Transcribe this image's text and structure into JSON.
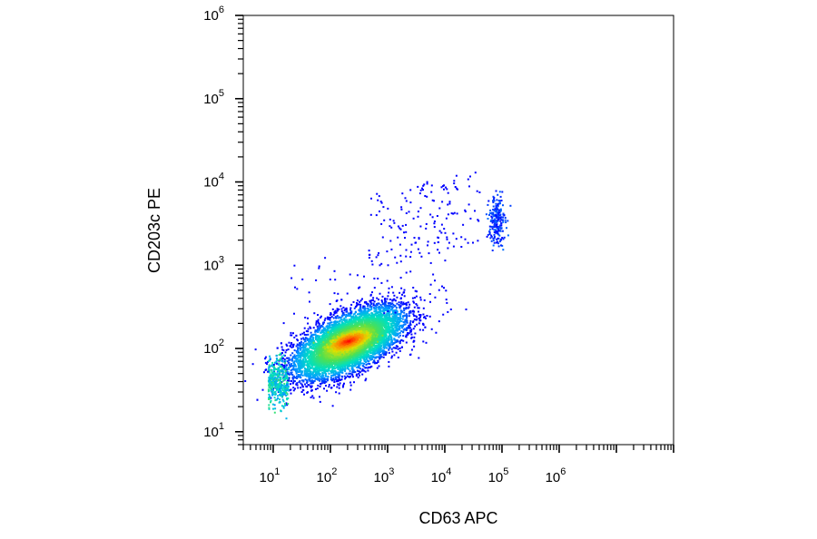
{
  "chart_data": {
    "type": "scatter",
    "subtype": "density-dot-plot",
    "xlabel": "CD63 APC",
    "ylabel": "CD203c PE",
    "xscale": "log",
    "yscale": "log",
    "xlim": [
      3,
      100000000
    ],
    "ylim": [
      7,
      1000000
    ],
    "x_ticks": [
      {
        "base": "10",
        "exp": "1",
        "value": 10
      },
      {
        "base": "10",
        "exp": "2",
        "value": 100
      },
      {
        "base": "10",
        "exp": "3",
        "value": 1000
      },
      {
        "base": "10",
        "exp": "4",
        "value": 10000
      },
      {
        "base": "10",
        "exp": "5",
        "value": 100000
      },
      {
        "base": "10",
        "exp": "6",
        "value": 1000000
      }
    ],
    "y_ticks": [
      {
        "base": "10",
        "exp": "1",
        "value": 10
      },
      {
        "base": "10",
        "exp": "2",
        "value": 100
      },
      {
        "base": "10",
        "exp": "3",
        "value": 1000
      },
      {
        "base": "10",
        "exp": "4",
        "value": 10000
      },
      {
        "base": "10",
        "exp": "5",
        "value": 100000
      },
      {
        "base": "10",
        "exp": "6",
        "value": 1000000
      }
    ],
    "populations": [
      {
        "center_x": 200,
        "center_y": 120,
        "x_range": [
          8,
          6000
        ],
        "y_range": [
          20,
          600
        ],
        "density": "high",
        "events_drawn": 7000
      },
      {
        "center_x": 200,
        "center_y": 125,
        "x_range": [
          80,
          600
        ],
        "y_range": [
          90,
          170
        ],
        "density": "peak",
        "events_drawn": 500
      },
      {
        "center_x": 80000,
        "center_y": 3500,
        "x_range": [
          50000,
          130000
        ],
        "y_range": [
          1500,
          8000
        ],
        "density": "low",
        "events_drawn": 220
      },
      {
        "center_x": 2000,
        "center_y": 3000,
        "x_range": [
          400,
          40000
        ],
        "y_range": [
          800,
          9000
        ],
        "density": "sparse",
        "events_drawn": 160
      }
    ],
    "density_colors": [
      "#0000ff",
      "#00a0ff",
      "#00e0c0",
      "#50e050",
      "#e0e000",
      "#ff8000",
      "#ff0000"
    ],
    "frame_color": "#000000",
    "grid": false,
    "legend": false
  }
}
